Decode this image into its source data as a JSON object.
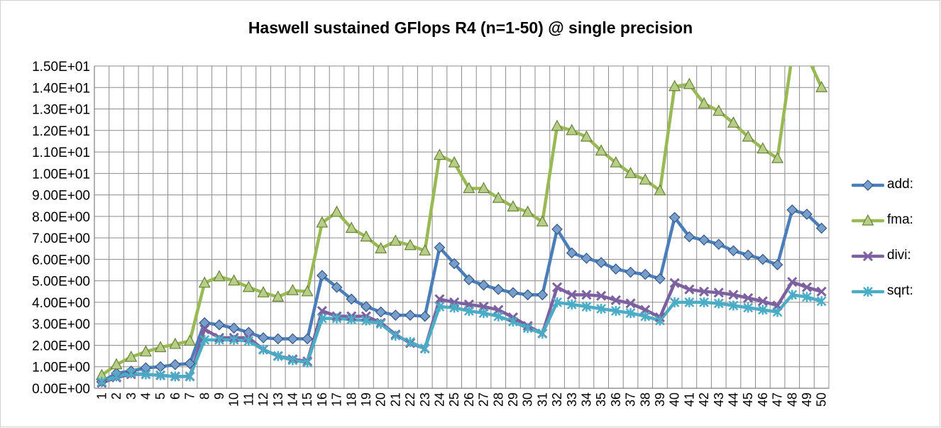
{
  "chart_data": {
    "type": "line",
    "title": "Haswell sustained GFlops R4 (n=1-50) @ single precision",
    "xlabel": "",
    "ylabel": "",
    "ylim": [
      0,
      15
    ],
    "grid": true,
    "legend_position": "right",
    "y_ticks": [
      "0.00E+00",
      "1.00E+00",
      "2.00E+00",
      "3.00E+00",
      "4.00E+00",
      "5.00E+00",
      "6.00E+00",
      "7.00E+00",
      "8.00E+00",
      "9.00E+00",
      "1.00E+01",
      "1.10E+01",
      "1.20E+01",
      "1.30E+01",
      "1.40E+01",
      "1.50E+01"
    ],
    "x": [
      "1",
      "2",
      "3",
      "4",
      "5",
      "6",
      "7",
      "8",
      "9",
      "10",
      "11",
      "12",
      "13",
      "14",
      "15",
      "16",
      "17",
      "18",
      "19",
      "20",
      "21",
      "22",
      "23",
      "24",
      "25",
      "26",
      "27",
      "28",
      "29",
      "30",
      "31",
      "32",
      "33",
      "34",
      "35",
      "36",
      "37",
      "38",
      "39",
      "40",
      "41",
      "42",
      "43",
      "44",
      "45",
      "46",
      "47",
      "48",
      "49",
      "50"
    ],
    "series": [
      {
        "name": "add:",
        "color": "#4a7ebb",
        "marker": "diamond",
        "values": [
          0.3,
          0.7,
          0.8,
          0.95,
          1.0,
          1.1,
          1.15,
          3.05,
          2.95,
          2.8,
          2.6,
          2.35,
          2.3,
          2.3,
          2.3,
          5.25,
          4.7,
          4.15,
          3.8,
          3.55,
          3.4,
          3.4,
          3.35,
          6.55,
          5.8,
          5.05,
          4.8,
          4.6,
          4.45,
          4.35,
          4.35,
          7.4,
          6.3,
          6.05,
          5.85,
          5.55,
          5.4,
          5.3,
          5.1,
          7.95,
          7.05,
          6.9,
          6.7,
          6.4,
          6.2,
          6.0,
          5.75,
          8.3,
          8.1,
          7.45
        ]
      },
      {
        "name": "fma:",
        "color": "#98b954",
        "marker": "triangle",
        "values": [
          0.6,
          1.1,
          1.45,
          1.7,
          1.9,
          2.05,
          2.2,
          4.9,
          5.2,
          5.0,
          4.7,
          4.45,
          4.25,
          4.55,
          4.5,
          7.7,
          8.2,
          7.45,
          7.05,
          6.5,
          6.85,
          6.65,
          6.4,
          10.85,
          10.5,
          9.3,
          9.3,
          8.85,
          8.45,
          8.2,
          7.75,
          12.2,
          12.0,
          11.7,
          11.05,
          10.5,
          10.0,
          9.7,
          9.2,
          14.05,
          14.15,
          13.25,
          12.9,
          12.35,
          11.7,
          11.15,
          10.7,
          15.5,
          15.5,
          14.0
        ]
      },
      {
        "name": "divi:",
        "color": "#7d60a0",
        "marker": "x",
        "values": [
          0.25,
          0.5,
          0.65,
          0.65,
          0.6,
          0.55,
          0.55,
          2.75,
          2.35,
          2.35,
          2.35,
          1.8,
          1.5,
          1.35,
          1.25,
          3.6,
          3.35,
          3.35,
          3.35,
          3.05,
          2.5,
          2.1,
          1.85,
          4.15,
          4.0,
          3.9,
          3.8,
          3.65,
          3.3,
          2.9,
          2.55,
          4.7,
          4.35,
          4.35,
          4.3,
          4.1,
          3.95,
          3.65,
          3.3,
          4.9,
          4.6,
          4.5,
          4.45,
          4.35,
          4.2,
          4.05,
          3.85,
          4.95,
          4.7,
          4.5
        ]
      },
      {
        "name": "sqrt:",
        "color": "#4bacc6",
        "marker": "star",
        "values": [
          0.3,
          0.55,
          0.7,
          0.65,
          0.6,
          0.55,
          0.55,
          2.25,
          2.25,
          2.25,
          2.2,
          1.8,
          1.5,
          1.3,
          1.2,
          3.25,
          3.25,
          3.2,
          3.15,
          3.0,
          2.45,
          2.15,
          1.85,
          3.8,
          3.75,
          3.6,
          3.5,
          3.35,
          3.1,
          2.8,
          2.55,
          4.0,
          3.9,
          3.8,
          3.7,
          3.6,
          3.5,
          3.35,
          3.15,
          4.0,
          4.0,
          4.0,
          3.95,
          3.85,
          3.75,
          3.65,
          3.55,
          4.35,
          4.25,
          4.05
        ]
      }
    ]
  }
}
